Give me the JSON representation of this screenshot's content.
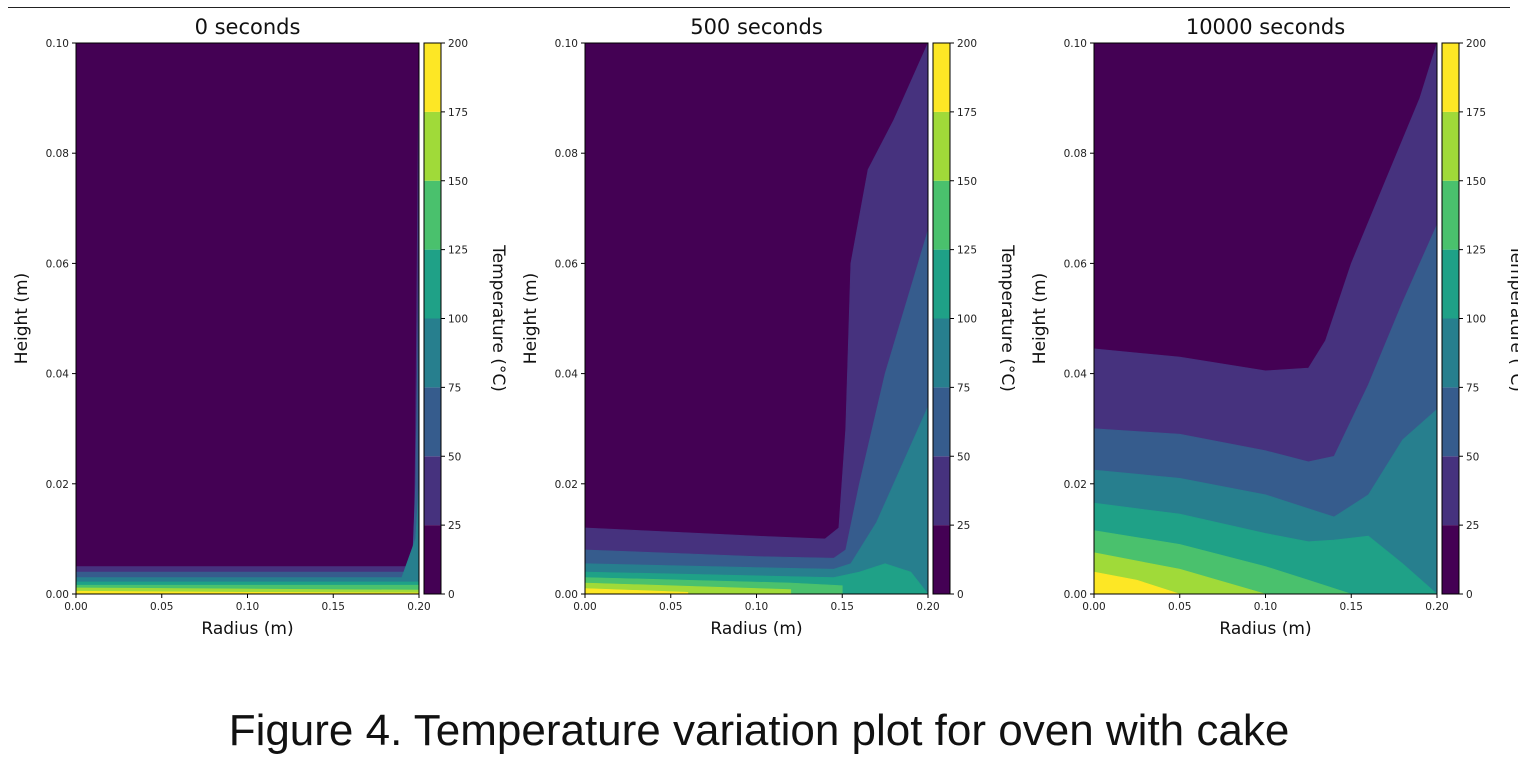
{
  "figure": {
    "caption": "Figure 4. Temperature variation plot for oven with cake"
  },
  "colorbar": {
    "label": "Temperature (°C)",
    "levels": [
      0,
      25,
      50,
      75,
      100,
      125,
      150,
      175,
      200
    ],
    "tick_labels": [
      "0",
      "25",
      "50",
      "75",
      "100",
      "125",
      "150",
      "175",
      "200"
    ],
    "colors": [
      "#440154",
      "#46327e",
      "#365c8d",
      "#277f8e",
      "#1fa187",
      "#4ac16d",
      "#a0da39",
      "#fde725"
    ]
  },
  "chart_data": [
    {
      "type": "heatmap",
      "title": "0 seconds",
      "xlabel": "Radius (m)",
      "ylabel": "Height (m)",
      "xlim": [
        0,
        0.2
      ],
      "ylim": [
        0,
        0.1
      ],
      "x_ticks": [
        "0.00",
        "0.05",
        "0.10",
        "0.15",
        "0.20"
      ],
      "y_ticks": [
        "0.00",
        "0.02",
        "0.04",
        "0.06",
        "0.08",
        "0.10"
      ],
      "colorbar_label": "Temperature (°C)",
      "contour_bands": [
        {
          "level": "25-50",
          "boundary": [
            [
              0,
              0.005
            ],
            [
              0.155,
              0.005
            ],
            [
              0.197,
              0.005
            ],
            [
              0.198,
              0.03
            ],
            [
              0.2,
              0.1
            ]
          ]
        },
        {
          "level": "50-75",
          "boundary": [
            [
              0,
              0.004
            ],
            [
              0.15,
              0.004
            ],
            [
              0.196,
              0.004
            ],
            [
              0.198,
              0.02
            ],
            [
              0.2,
              0.06
            ]
          ]
        },
        {
          "level": "75-100",
          "boundary": [
            [
              0,
              0.003
            ],
            [
              0.19,
              0.003
            ],
            [
              0.198,
              0.01
            ],
            [
              0.2,
              0.02
            ]
          ]
        },
        {
          "level": "100-125",
          "boundary": [
            [
              0,
              0.0022
            ],
            [
              0.2,
              0.0022
            ]
          ]
        },
        {
          "level": "125-150",
          "boundary": [
            [
              0,
              0.0016
            ],
            [
              0.2,
              0.0016
            ]
          ]
        },
        {
          "level": "150-175",
          "boundary": [
            [
              0,
              0.0011
            ],
            [
              0.2,
              0.0007
            ]
          ]
        },
        {
          "level": "175-200",
          "boundary": [
            [
              0,
              0.0005
            ],
            [
              0.1,
              0.0003
            ],
            [
              0.2,
              0.0002
            ]
          ]
        }
      ]
    },
    {
      "type": "heatmap",
      "title": "500 seconds",
      "xlabel": "Radius (m)",
      "ylabel": "Height (m)",
      "xlim": [
        0,
        0.2
      ],
      "ylim": [
        0,
        0.1
      ],
      "x_ticks": [
        "0.00",
        "0.05",
        "0.10",
        "0.15",
        "0.20"
      ],
      "y_ticks": [
        "0.00",
        "0.02",
        "0.04",
        "0.06",
        "0.08",
        "0.10"
      ],
      "colorbar_label": "Temperature (°C)",
      "contour_bands": [
        {
          "level": "25-50",
          "boundary": [
            [
              0,
              0.012
            ],
            [
              0.1,
              0.0105
            ],
            [
              0.14,
              0.01
            ],
            [
              0.148,
              0.012
            ],
            [
              0.152,
              0.03
            ],
            [
              0.155,
              0.06
            ],
            [
              0.165,
              0.077
            ],
            [
              0.18,
              0.086
            ],
            [
              0.2,
              0.1
            ]
          ]
        },
        {
          "level": "50-75",
          "boundary": [
            [
              0,
              0.008
            ],
            [
              0.1,
              0.0068
            ],
            [
              0.145,
              0.0065
            ],
            [
              0.152,
              0.008
            ],
            [
              0.16,
              0.02
            ],
            [
              0.175,
              0.04
            ],
            [
              0.2,
              0.066
            ]
          ]
        },
        {
          "level": "75-100",
          "boundary": [
            [
              0,
              0.0055
            ],
            [
              0.1,
              0.0048
            ],
            [
              0.145,
              0.0045
            ],
            [
              0.155,
              0.0055
            ],
            [
              0.17,
              0.013
            ],
            [
              0.2,
              0.034
            ]
          ]
        },
        {
          "level": "100-125",
          "boundary": [
            [
              0,
              0.004
            ],
            [
              0.145,
              0.003
            ],
            [
              0.16,
              0.004
            ],
            [
              0.175,
              0.0055
            ],
            [
              0.19,
              0.004
            ],
            [
              0.2,
              0
            ]
          ]
        },
        {
          "level": "125-150",
          "boundary": [
            [
              0,
              0.003
            ],
            [
              0.12,
              0.002
            ],
            [
              0.15,
              0.0015
            ]
          ]
        },
        {
          "level": "150-175",
          "boundary": [
            [
              0,
              0.002
            ],
            [
              0.12,
              0.0008
            ]
          ]
        },
        {
          "level": "175-200",
          "boundary": [
            [
              0,
              0.001
            ],
            [
              0.06,
              0.0003
            ]
          ]
        }
      ]
    },
    {
      "type": "heatmap",
      "title": "10000 seconds",
      "xlabel": "Radius (m)",
      "ylabel": "Height (m)",
      "xlim": [
        0,
        0.2
      ],
      "ylim": [
        0,
        0.1
      ],
      "x_ticks": [
        "0.00",
        "0.05",
        "0.10",
        "0.15",
        "0.20"
      ],
      "y_ticks": [
        "0.00",
        "0.02",
        "0.04",
        "0.06",
        "0.08",
        "0.10"
      ],
      "colorbar_label": "Temperature (°C)",
      "contour_bands": [
        {
          "level": "25-50",
          "boundary": [
            [
              0,
              0.0445
            ],
            [
              0.05,
              0.043
            ],
            [
              0.1,
              0.0405
            ],
            [
              0.125,
              0.041
            ],
            [
              0.135,
              0.046
            ],
            [
              0.15,
              0.06
            ],
            [
              0.17,
              0.075
            ],
            [
              0.19,
              0.09
            ],
            [
              0.2,
              0.1
            ]
          ]
        },
        {
          "level": "50-75",
          "boundary": [
            [
              0,
              0.03
            ],
            [
              0.05,
              0.029
            ],
            [
              0.1,
              0.026
            ],
            [
              0.125,
              0.024
            ],
            [
              0.14,
              0.025
            ],
            [
              0.16,
              0.038
            ],
            [
              0.18,
              0.053
            ],
            [
              0.2,
              0.067
            ]
          ]
        },
        {
          "level": "75-100",
          "boundary": [
            [
              0,
              0.0225
            ],
            [
              0.05,
              0.021
            ],
            [
              0.1,
              0.018
            ],
            [
              0.125,
              0.0155
            ],
            [
              0.14,
              0.014
            ],
            [
              0.16,
              0.018
            ],
            [
              0.18,
              0.028
            ],
            [
              0.2,
              0.0335
            ]
          ]
        },
        {
          "level": "100-125",
          "boundary": [
            [
              0,
              0.0165
            ],
            [
              0.05,
              0.0145
            ],
            [
              0.1,
              0.011
            ],
            [
              0.125,
              0.0095
            ],
            [
              0.14,
              0.0098
            ],
            [
              0.16,
              0.0105
            ],
            [
              0.18,
              0.0055
            ],
            [
              0.2,
              0
            ]
          ]
        },
        {
          "level": "125-150",
          "boundary": [
            [
              0,
              0.0115
            ],
            [
              0.05,
              0.009
            ],
            [
              0.1,
              0.005
            ],
            [
              0.125,
              0.0025
            ],
            [
              0.15,
              0
            ]
          ]
        },
        {
          "level": "150-175",
          "boundary": [
            [
              0,
              0.0075
            ],
            [
              0.05,
              0.0045
            ],
            [
              0.1,
              0
            ]
          ]
        },
        {
          "level": "175-200",
          "boundary": [
            [
              0,
              0.004
            ],
            [
              0.025,
              0.0025
            ],
            [
              0.05,
              0
            ]
          ]
        }
      ]
    }
  ]
}
